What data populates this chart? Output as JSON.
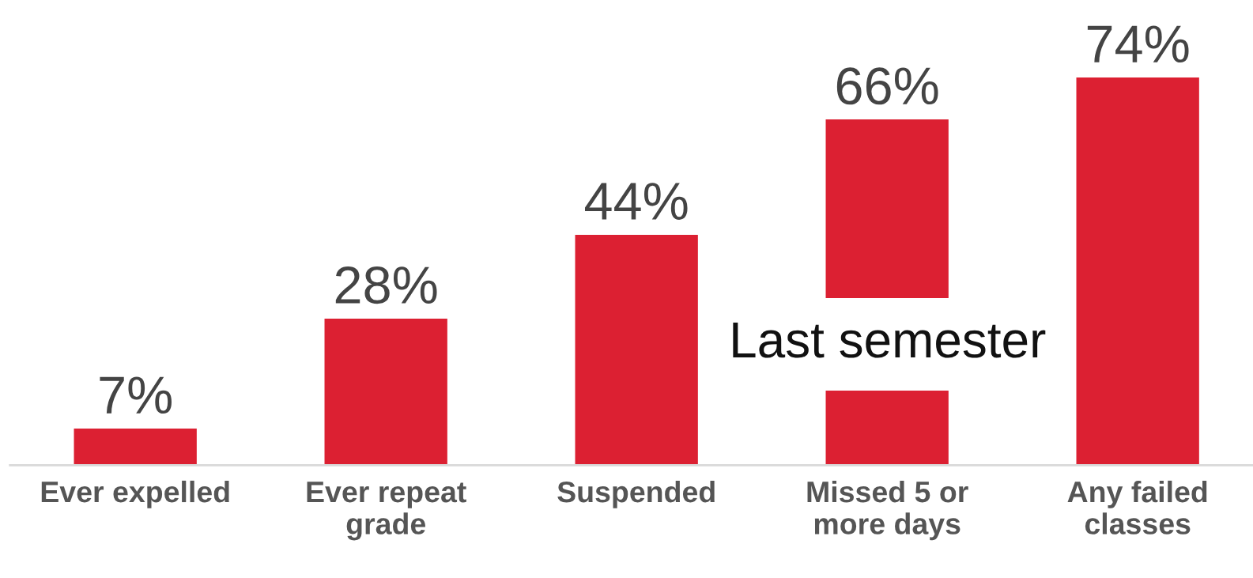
{
  "chart_data": {
    "type": "bar",
    "categories": [
      "Ever expelled",
      "Ever repeat\ngrade",
      "Suspended",
      "Missed 5 or\nmore days",
      "Any failed\nclasses"
    ],
    "values": [
      7,
      28,
      44,
      66,
      74
    ],
    "color": "#dc2032",
    "value_labels": [
      "7%",
      "28%",
      "44%",
      "66%",
      "74%"
    ],
    "annotations": [
      "Last semester"
    ],
    "grid": false,
    "legend": false
  }
}
